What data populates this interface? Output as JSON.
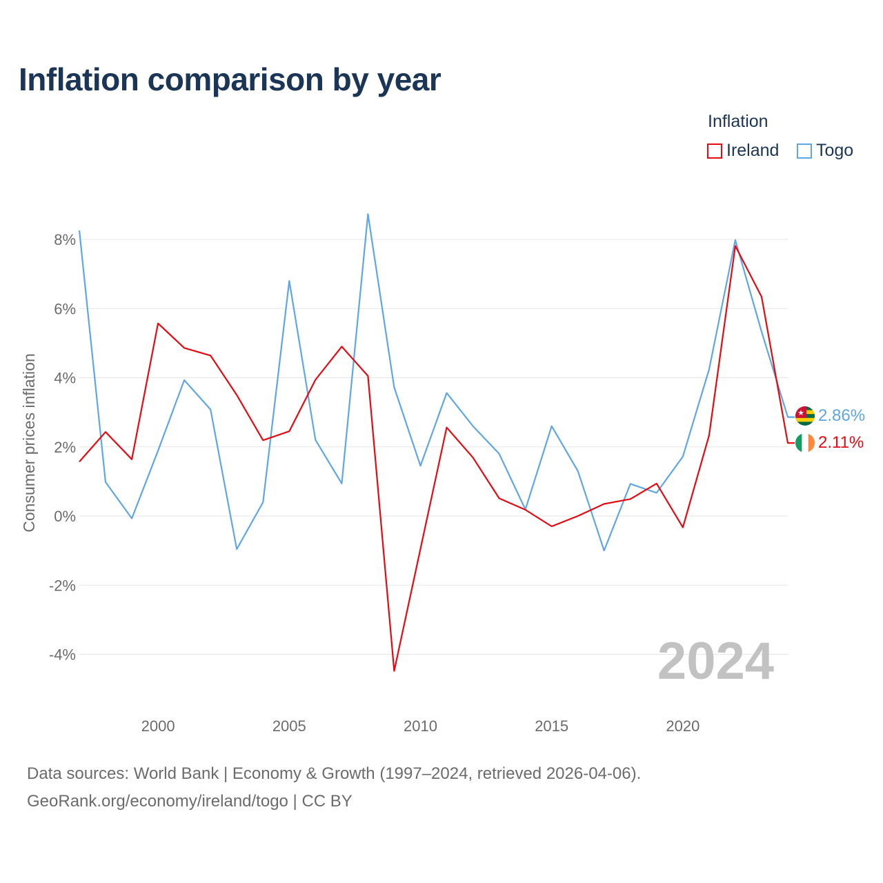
{
  "title": "Inflation comparison by year",
  "legend": {
    "title": "Inflation",
    "items": [
      {
        "label": "Ireland",
        "color": "#e8080f"
      },
      {
        "label": "Togo",
        "color": "#5ea6e6"
      }
    ]
  },
  "source": {
    "line1": "Data sources: World Bank | Economy & Growth (1997–2024, retrieved 2026-04-06).",
    "line2": "GeoRank.org/economy/ireland/togo | CC BY"
  },
  "chart_data": {
    "type": "line",
    "title": "Inflation comparison by year",
    "xlabel": "",
    "ylabel": "Consumer prices inflation",
    "xlim": [
      1997,
      2024
    ],
    "ylim": [
      -5,
      9
    ],
    "x_ticks": [
      2000,
      2005,
      2010,
      2015,
      2020
    ],
    "x_tick_labels": [
      "2000",
      "2005",
      "2010",
      "2015",
      "2020"
    ],
    "y_ticks": [
      -4,
      -2,
      0,
      2,
      4,
      6,
      8
    ],
    "y_tick_labels": [
      "-4%",
      "-2%",
      "0%",
      "2%",
      "4%",
      "6%",
      "8%"
    ],
    "grid": true,
    "watermark": "2024",
    "x": [
      1997,
      1998,
      1999,
      2000,
      2001,
      2002,
      2003,
      2004,
      2005,
      2006,
      2007,
      2008,
      2009,
      2010,
      2011,
      2012,
      2013,
      2014,
      2015,
      2016,
      2017,
      2018,
      2019,
      2020,
      2021,
      2022,
      2023,
      2024
    ],
    "series": [
      {
        "name": "Ireland",
        "color": "#e8080f",
        "end_label": "2.11%",
        "values": [
          1.57,
          2.43,
          1.64,
          5.57,
          4.86,
          4.64,
          3.5,
          2.19,
          2.45,
          3.94,
          4.9,
          4.05,
          -4.48,
          -0.95,
          2.56,
          1.69,
          0.51,
          0.18,
          -0.3,
          0.0,
          0.35,
          0.49,
          0.94,
          -0.33,
          2.33,
          7.81,
          6.34,
          2.11
        ]
      },
      {
        "name": "Togo",
        "color": "#5ea6e6",
        "end_label": "2.86%",
        "values": [
          8.26,
          0.98,
          -0.07,
          1.89,
          3.93,
          3.08,
          -0.96,
          0.4,
          6.8,
          2.2,
          0.94,
          8.73,
          3.72,
          1.45,
          3.56,
          2.6,
          1.8,
          0.19,
          2.6,
          1.3,
          -1.0,
          0.93,
          0.67,
          1.72,
          4.24,
          7.98,
          5.33,
          2.86
        ]
      }
    ]
  }
}
